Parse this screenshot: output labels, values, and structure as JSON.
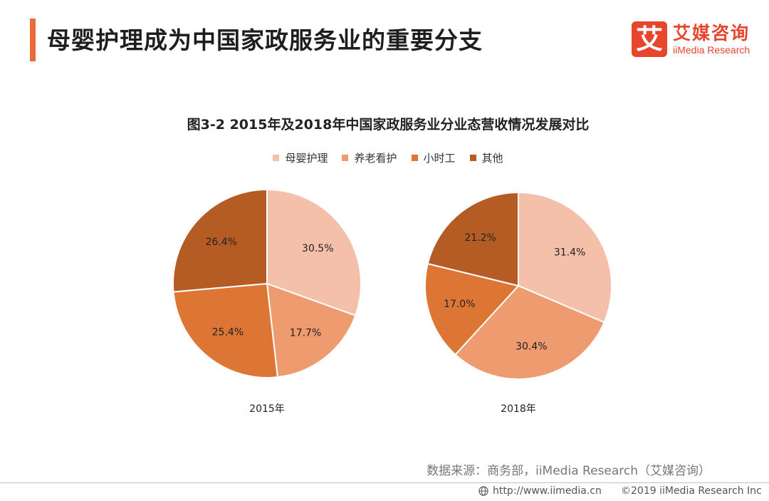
{
  "header": {
    "title": "母婴护理成为中国家政服务业的重要分支",
    "logo_mark": "艾",
    "logo_cn": "艾媒咨询",
    "logo_en": "iiMedia Research"
  },
  "chart_data": [
    {
      "type": "pie",
      "title": "图3-2 2015年及2018年中国家政服务业分业态营收情况发展对比",
      "label": "2015年",
      "categories": [
        "母婴护理",
        "养老看护",
        "小时工",
        "其他"
      ],
      "values": [
        30.5,
        17.7,
        25.4,
        26.4
      ],
      "value_labels": [
        "30.5%",
        "17.7%",
        "25.4%",
        "26.4%"
      ],
      "colors": [
        "#f5c0aa",
        "#ee9b6f",
        "#dd7534",
        "#b55b24"
      ],
      "legend": "top"
    },
    {
      "type": "pie",
      "title": "图3-2 2015年及2018年中国家政服务业分业态营收情况发展对比",
      "label": "2018年",
      "categories": [
        "母婴护理",
        "养老看护",
        "小时工",
        "其他"
      ],
      "values": [
        31.4,
        30.4,
        17.0,
        21.2
      ],
      "value_labels": [
        "31.4%",
        "30.4%",
        "17.0%",
        "21.2%"
      ],
      "colors": [
        "#f5c0aa",
        "#ee9b6f",
        "#dd7534",
        "#b55b24"
      ],
      "legend": "top"
    }
  ],
  "footer": {
    "source": "数据来源：商务部，iiMedia Research（艾媒咨询）",
    "url": "http://www.iimedia.cn",
    "copyright": "©2019  iiMedia Research  Inc"
  }
}
